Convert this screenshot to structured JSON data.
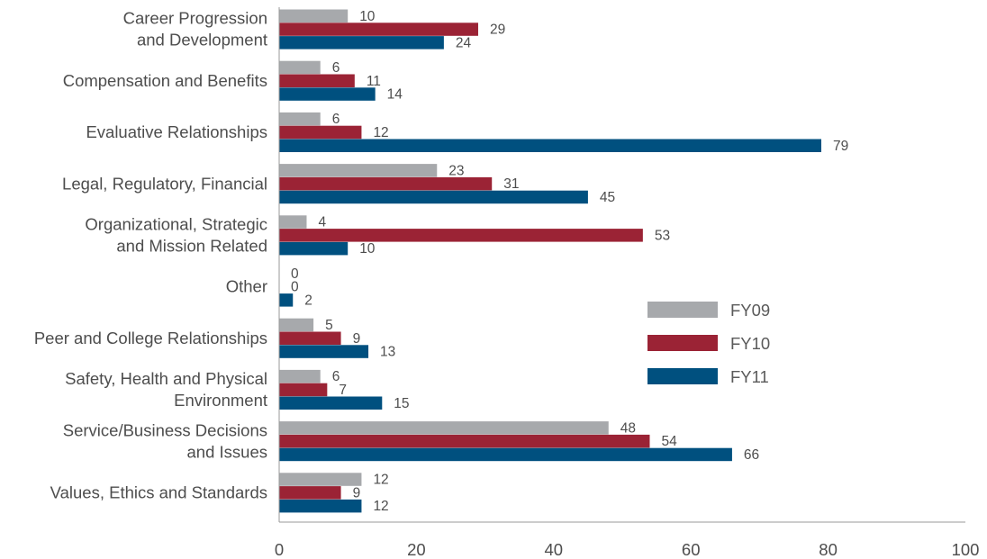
{
  "chart_data": {
    "type": "bar",
    "orientation": "horizontal",
    "title": "",
    "xlabel": "",
    "ylabel": "",
    "xlim": [
      0,
      100
    ],
    "x_ticks": [
      0,
      20,
      40,
      60,
      80,
      100
    ],
    "grid": false,
    "legend_position": "right",
    "categories": [
      [
        "Career Progression",
        "and Development"
      ],
      [
        "Compensation and Benefits"
      ],
      [
        "Evaluative Relationships"
      ],
      [
        "Legal, Regulatory, Financial"
      ],
      [
        "Organizational, Strategic",
        "and Mission Related"
      ],
      [
        "Other"
      ],
      [
        "Peer and College Relationships"
      ],
      [
        "Safety, Health and Physical",
        "Environment"
      ],
      [
        "Service/Business Decisions",
        "and Issues"
      ],
      [
        "Values, Ethics and Standards"
      ]
    ],
    "series": [
      {
        "name": "FY09",
        "color": "#a7a9ac",
        "values": [
          10,
          6,
          6,
          23,
          4,
          0,
          5,
          6,
          48,
          12
        ]
      },
      {
        "name": "FY10",
        "color": "#9b2335",
        "values": [
          29,
          11,
          12,
          31,
          53,
          0,
          9,
          7,
          54,
          9
        ]
      },
      {
        "name": "FY11",
        "color": "#00507f",
        "values": [
          24,
          14,
          79,
          45,
          10,
          2,
          13,
          15,
          66,
          12
        ]
      }
    ]
  }
}
